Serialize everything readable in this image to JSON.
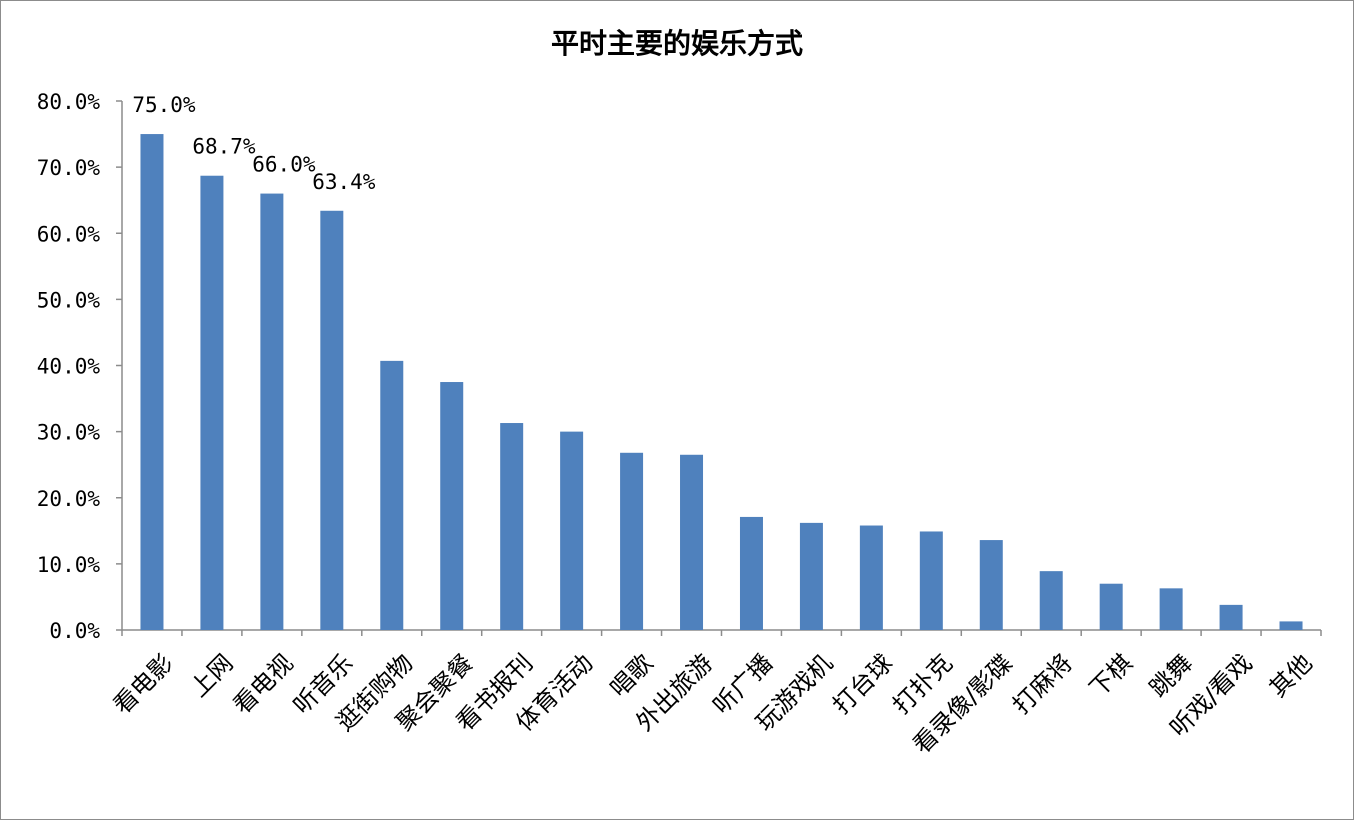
{
  "chart_data": {
    "type": "bar",
    "title": "平时主要的娱乐方式",
    "xlabel": "",
    "ylabel": "",
    "ylim": [
      0,
      80
    ],
    "y_ticks": [
      "0.0%",
      "10.0%",
      "20.0%",
      "30.0%",
      "40.0%",
      "50.0%",
      "60.0%",
      "70.0%",
      "80.0%"
    ],
    "grid": false,
    "legend": "none",
    "bar_color": "#4f81bd",
    "categories": [
      "看电影",
      "上网",
      "看电视",
      "听音乐",
      "逛街购物",
      "聚会聚餐",
      "看书报刊",
      "体育活动",
      "唱歌",
      "外出旅游",
      "听广播",
      "玩游戏机",
      "打台球",
      "打扑克",
      "看录像/影碟",
      "打麻将",
      "下棋",
      "跳舞",
      "听戏/看戏",
      "其他"
    ],
    "values": [
      75.0,
      68.7,
      66.0,
      63.4,
      40.7,
      37.5,
      31.3,
      30.0,
      26.8,
      26.5,
      17.1,
      16.2,
      15.8,
      14.9,
      13.6,
      8.9,
      7.0,
      6.3,
      3.8,
      1.3
    ],
    "data_labels": [
      "75.0%",
      "68.7%",
      "66.0%",
      "63.4%",
      "",
      "",
      "",
      "",
      "",
      "",
      "",
      "",
      "",
      "",
      "",
      "",
      "",
      "",
      "",
      ""
    ]
  }
}
